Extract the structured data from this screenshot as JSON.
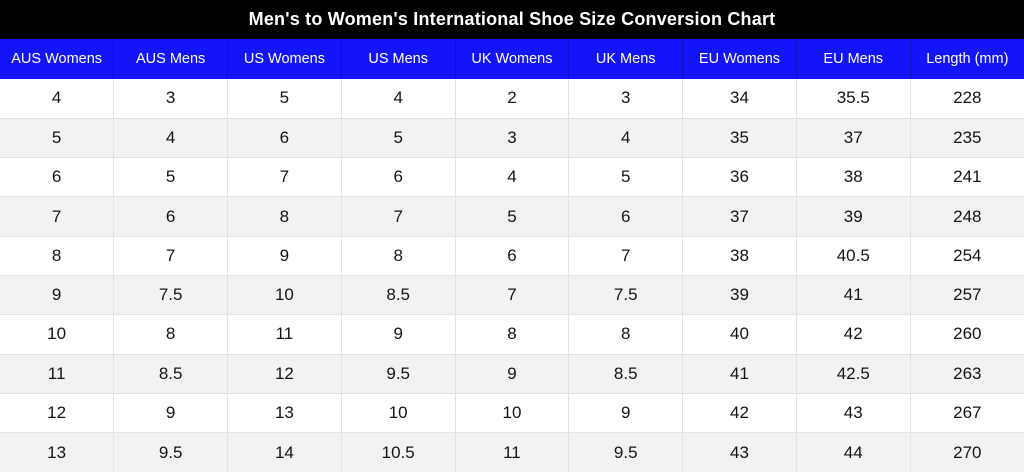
{
  "colors": {
    "title_bar_bg": "#000000",
    "title_text": "#ffffff",
    "header_bg": "#1414fa",
    "header_text": "#ffffff",
    "row_bg": "#ffffff",
    "row_alt_bg": "#f2f2f2",
    "border": "#e3e3e3",
    "cell_text": "#141414"
  },
  "chart_data": {
    "type": "table",
    "title": "Men's to Women's International Shoe Size Conversion Chart",
    "columns": [
      "AUS Womens",
      "AUS Mens",
      "US Womens",
      "US Mens",
      "UK Womens",
      "UK Mens",
      "EU Womens",
      "EU Mens",
      "Length (mm)"
    ],
    "rows": [
      [
        "4",
        "3",
        "5",
        "4",
        "2",
        "3",
        "34",
        "35.5",
        "228"
      ],
      [
        "5",
        "4",
        "6",
        "5",
        "3",
        "4",
        "35",
        "37",
        "235"
      ],
      [
        "6",
        "5",
        "7",
        "6",
        "4",
        "5",
        "36",
        "38",
        "241"
      ],
      [
        "7",
        "6",
        "8",
        "7",
        "5",
        "6",
        "37",
        "39",
        "248"
      ],
      [
        "8",
        "7",
        "9",
        "8",
        "6",
        "7",
        "38",
        "40.5",
        "254"
      ],
      [
        "9",
        "7.5",
        "10",
        "8.5",
        "7",
        "7.5",
        "39",
        "41",
        "257"
      ],
      [
        "10",
        "8",
        "11",
        "9",
        "8",
        "8",
        "40",
        "42",
        "260"
      ],
      [
        "11",
        "8.5",
        "12",
        "9.5",
        "9",
        "8.5",
        "41",
        "42.5",
        "263"
      ],
      [
        "12",
        "9",
        "13",
        "10",
        "10",
        "9",
        "42",
        "43",
        "267"
      ],
      [
        "13",
        "9.5",
        "14",
        "10.5",
        "11",
        "9.5",
        "43",
        "44",
        "270"
      ]
    ]
  }
}
